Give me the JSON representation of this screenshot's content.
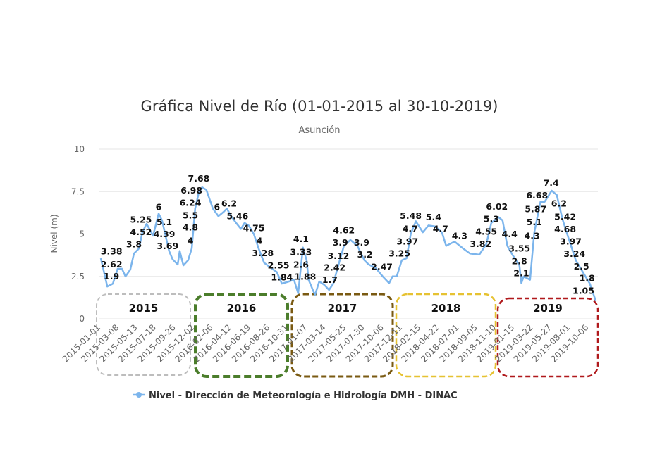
{
  "chart_data": {
    "type": "line",
    "title": "Gráfica Nivel de Río (01-01-2015 al 30-10-2019)",
    "subtitle": "Asunción",
    "xlabel": "",
    "ylabel": "Nivel (m)",
    "xlim": [
      "2015-01-01",
      "2019-10-30"
    ],
    "ylim": [
      0,
      10
    ],
    "yticks": [
      "0",
      "2.5",
      "5",
      "7.5",
      "10"
    ],
    "grid": true,
    "legend": "bottom",
    "xticks": [
      "2015-01-01",
      "2015-03-08",
      "2015-05-13",
      "2015-07-18",
      "2015-09-26",
      "2015-12-02",
      "2016-02-06",
      "2016-04-12",
      "2016-06-19",
      "2016-08-26",
      "2016-10-31",
      "2017-01-07",
      "2017-03-14",
      "2017-05-25",
      "2017-07-30",
      "2017-10-06",
      "2017-12-11",
      "2018-02-15",
      "2018-04-22",
      "2018-07-01",
      "2018-09-05",
      "2018-11-10",
      "2019-01-15",
      "2019-03-22",
      "2019-05-27",
      "2019-08-01",
      "2019-10-06"
    ],
    "series": [
      {
        "name": "Nivel - Dirección de Meteorología e Hidrología DMH - DINAC",
        "color": "#7cb5ec",
        "points": [
          [
            "2015-01-01",
            3.57
          ],
          [
            "2015-01-24",
            1.9
          ],
          [
            "2015-02-13",
            2.07
          ],
          [
            "2015-03-02",
            2.95
          ],
          [
            "2015-03-17",
            2.95
          ],
          [
            "2015-03-30",
            2.5
          ],
          [
            "2015-04-16",
            2.9
          ],
          [
            "2015-04-29",
            3.85
          ],
          [
            "2015-05-17",
            4.15
          ],
          [
            "2015-05-29",
            5.1
          ],
          [
            "2015-06-13",
            5.6
          ],
          [
            "2015-07-06",
            4.9
          ],
          [
            "2015-07-26",
            6.2
          ],
          [
            "2015-08-07",
            5.8
          ],
          [
            "2015-09-01",
            4.0
          ],
          [
            "2015-09-14",
            3.5
          ],
          [
            "2015-10-02",
            3.2
          ],
          [
            "2015-10-09",
            4.0
          ],
          [
            "2015-10-22",
            3.15
          ],
          [
            "2015-11-08",
            3.45
          ],
          [
            "2015-11-21",
            4.15
          ],
          [
            "2015-12-03",
            6.5
          ],
          [
            "2015-12-16",
            7.45
          ],
          [
            "2015-12-28",
            7.75
          ],
          [
            "2016-01-12",
            7.6
          ],
          [
            "2016-02-04",
            6.5
          ],
          [
            "2016-02-24",
            6.05
          ],
          [
            "2016-03-13",
            6.3
          ],
          [
            "2016-03-25",
            6.5
          ],
          [
            "2016-04-07",
            6.1
          ],
          [
            "2016-04-27",
            5.65
          ],
          [
            "2016-05-14",
            5.3
          ],
          [
            "2016-05-27",
            5.65
          ],
          [
            "2016-06-11",
            5.5
          ],
          [
            "2016-06-29",
            5.0
          ],
          [
            "2016-07-16",
            4.15
          ],
          [
            "2016-08-05",
            3.3
          ],
          [
            "2016-08-25",
            3.05
          ],
          [
            "2016-09-19",
            2.75
          ],
          [
            "2016-10-07",
            2.07
          ],
          [
            "2016-11-01",
            2.2
          ],
          [
            "2016-11-19",
            2.3
          ],
          [
            "2016-12-04",
            1.5
          ],
          [
            "2016-12-21",
            4.2
          ],
          [
            "2017-01-03",
            3.45
          ],
          [
            "2017-01-10",
            2.3
          ],
          [
            "2017-02-02",
            1.4
          ],
          [
            "2017-02-17",
            2.2
          ],
          [
            "2017-03-07",
            2.0
          ],
          [
            "2017-03-24",
            1.7
          ],
          [
            "2017-04-08",
            2.07
          ],
          [
            "2017-05-01",
            3.45
          ],
          [
            "2017-05-16",
            4.3
          ],
          [
            "2017-06-08",
            4.65
          ],
          [
            "2017-07-03",
            4.3
          ],
          [
            "2017-07-28",
            3.45
          ],
          [
            "2017-08-12",
            3.2
          ],
          [
            "2017-09-06",
            3.0
          ],
          [
            "2017-10-01",
            2.5
          ],
          [
            "2017-10-24",
            2.1
          ],
          [
            "2017-11-05",
            2.5
          ],
          [
            "2017-11-20",
            2.5
          ],
          [
            "2017-12-08",
            3.45
          ],
          [
            "2017-12-25",
            3.57
          ],
          [
            "2018-01-09",
            5.0
          ],
          [
            "2018-01-27",
            5.75
          ],
          [
            "2018-02-21",
            5.1
          ],
          [
            "2018-03-13",
            5.5
          ],
          [
            "2018-04-05",
            5.45
          ],
          [
            "2018-04-30",
            5.1
          ],
          [
            "2018-05-15",
            4.3
          ],
          [
            "2018-06-14",
            4.55
          ],
          [
            "2018-07-14",
            4.15
          ],
          [
            "2018-08-08",
            3.85
          ],
          [
            "2018-09-10",
            3.78
          ],
          [
            "2018-10-05",
            4.4
          ],
          [
            "2018-10-23",
            5.65
          ],
          [
            "2018-11-17",
            6.0
          ],
          [
            "2018-12-02",
            5.8
          ],
          [
            "2018-12-19",
            4.3
          ],
          [
            "2019-01-08",
            3.73
          ],
          [
            "2019-01-31",
            3.15
          ],
          [
            "2019-02-07",
            2.1
          ],
          [
            "2019-02-15",
            2.5
          ],
          [
            "2019-03-10",
            2.3
          ],
          [
            "2019-03-25",
            5.1
          ],
          [
            "2019-04-16",
            6.9
          ],
          [
            "2019-05-01",
            6.9
          ],
          [
            "2019-05-26",
            7.55
          ],
          [
            "2019-06-13",
            7.3
          ],
          [
            "2019-07-03",
            5.9
          ],
          [
            "2019-07-26",
            4.7
          ],
          [
            "2019-08-20",
            3.45
          ],
          [
            "2019-09-14",
            2.75
          ],
          [
            "2019-10-09",
            2.07
          ],
          [
            "2019-10-30",
            1.05
          ]
        ]
      }
    ],
    "data_labels": [
      {
        "date": "2015-02-08",
        "value": 3.38
      },
      {
        "date": "2015-02-08",
        "value": 2.62
      },
      {
        "date": "2015-02-08",
        "value": 1.9
      },
      {
        "date": "2015-04-29",
        "value": 3.8
      },
      {
        "date": "2015-05-24",
        "value": 4.52
      },
      {
        "date": "2015-05-24",
        "value": 5.25
      },
      {
        "date": "2015-07-26",
        "value": 6
      },
      {
        "date": "2015-08-15",
        "value": 5.1
      },
      {
        "date": "2015-08-15",
        "value": 4.39
      },
      {
        "date": "2015-08-27",
        "value": 3.69
      },
      {
        "date": "2015-11-16",
        "value": 4
      },
      {
        "date": "2015-11-16",
        "value": 4.8
      },
      {
        "date": "2015-11-16",
        "value": 5.5
      },
      {
        "date": "2015-11-16",
        "value": 6.24
      },
      {
        "date": "2015-11-20",
        "value": 6.98
      },
      {
        "date": "2015-12-16",
        "value": 7.68
      },
      {
        "date": "2016-02-19",
        "value": 6
      },
      {
        "date": "2016-04-02",
        "value": 6.2
      },
      {
        "date": "2016-05-02",
        "value": 5.46
      },
      {
        "date": "2016-06-29",
        "value": 4.75
      },
      {
        "date": "2016-07-19",
        "value": 4
      },
      {
        "date": "2016-07-31",
        "value": 3.28
      },
      {
        "date": "2016-09-25",
        "value": 2.55
      },
      {
        "date": "2016-10-07",
        "value": 1.84
      },
      {
        "date": "2016-12-14",
        "value": 4.1
      },
      {
        "date": "2016-12-14",
        "value": 3.33
      },
      {
        "date": "2016-12-14",
        "value": 2.6
      },
      {
        "date": "2016-12-29",
        "value": 1.88
      },
      {
        "date": "2017-03-27",
        "value": 1.7
      },
      {
        "date": "2017-04-13",
        "value": 2.42
      },
      {
        "date": "2017-04-26",
        "value": 3.12
      },
      {
        "date": "2017-05-03",
        "value": 3.9
      },
      {
        "date": "2017-05-16",
        "value": 4.62
      },
      {
        "date": "2017-07-18",
        "value": 3.9
      },
      {
        "date": "2017-07-30",
        "value": 3.2
      },
      {
        "date": "2017-09-28",
        "value": 2.47
      },
      {
        "date": "2017-11-30",
        "value": 3.25
      },
      {
        "date": "2017-12-28",
        "value": 3.97
      },
      {
        "date": "2018-01-07",
        "value": 4.7
      },
      {
        "date": "2018-01-09",
        "value": 5.48
      },
      {
        "date": "2018-03-31",
        "value": 5.4
      },
      {
        "date": "2018-04-25",
        "value": 4.7
      },
      {
        "date": "2018-07-02",
        "value": 4.3
      },
      {
        "date": "2018-09-15",
        "value": 3.82
      },
      {
        "date": "2018-10-05",
        "value": 4.55
      },
      {
        "date": "2018-10-23",
        "value": 5.3
      },
      {
        "date": "2018-11-12",
        "value": 6.02
      },
      {
        "date": "2018-12-27",
        "value": 4.4
      },
      {
        "date": "2019-01-31",
        "value": 3.55
      },
      {
        "date": "2019-01-31",
        "value": 2.8
      },
      {
        "date": "2019-02-07",
        "value": 2.1
      },
      {
        "date": "2019-03-17",
        "value": 4.3
      },
      {
        "date": "2019-03-25",
        "value": 5.1
      },
      {
        "date": "2019-03-30",
        "value": 5.87
      },
      {
        "date": "2019-04-04",
        "value": 6.68
      },
      {
        "date": "2019-05-24",
        "value": 7.4
      },
      {
        "date": "2019-06-21",
        "value": 6.2
      },
      {
        "date": "2019-07-13",
        "value": 5.42
      },
      {
        "date": "2019-07-13",
        "value": 4.68
      },
      {
        "date": "2019-08-02",
        "value": 3.97
      },
      {
        "date": "2019-08-15",
        "value": 3.24
      },
      {
        "date": "2019-09-09",
        "value": 2.5
      },
      {
        "date": "2019-09-29",
        "value": 1.8
      },
      {
        "date": "2019-09-16",
        "value": 1.05
      }
    ],
    "year_boxes": [
      {
        "label": "2015",
        "color": "#bdbdbd"
      },
      {
        "label": "2016",
        "color": "#4b7d2b"
      },
      {
        "label": "2017",
        "color": "#7a5a12"
      },
      {
        "label": "2018",
        "color": "#e6c232"
      },
      {
        "label": "2019",
        "color": "#b0191c"
      }
    ]
  }
}
